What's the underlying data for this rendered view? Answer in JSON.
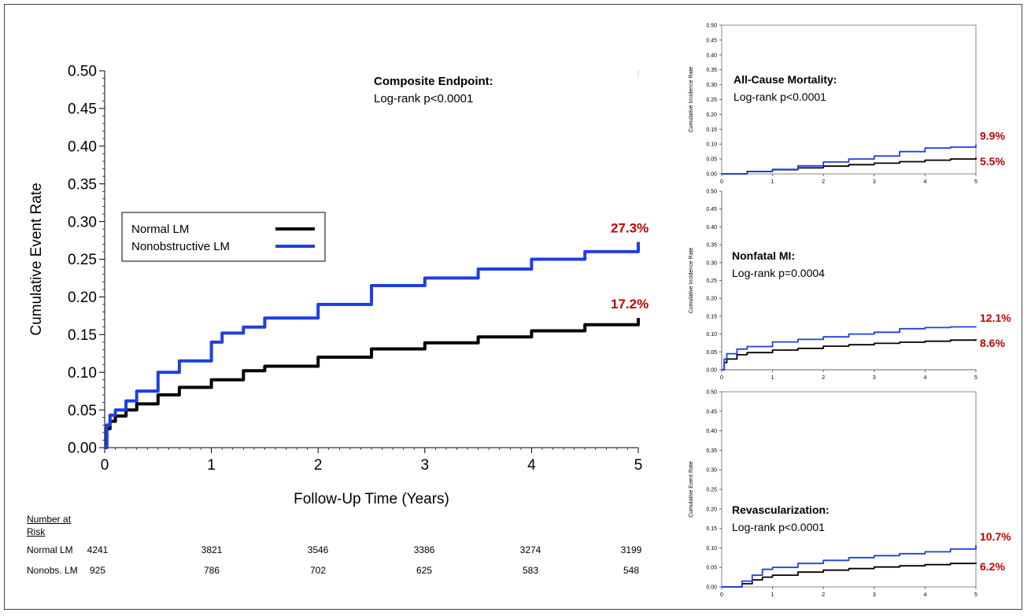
{
  "chart_data": [
    {
      "type": "line",
      "title": "Composite Endpoint:",
      "subtitle": "Log-rank p<0.0001",
      "xlabel": "Follow-Up Time (Years)",
      "ylabel": "Cumulative Event Rate",
      "xlim": [
        0,
        5
      ],
      "ylim": [
        0,
        0.5
      ],
      "x_ticks": [
        "0",
        "1",
        "2",
        "3",
        "4",
        "5"
      ],
      "y_ticks": [
        "0.00",
        "0.05",
        "0.10",
        "0.15",
        "0.20",
        "0.25",
        "0.30",
        "0.35",
        "0.40",
        "0.45",
        "0.50"
      ],
      "legend": {
        "placement": "center-left",
        "entries": [
          "Normal LM",
          "Nonobstructive LM"
        ]
      },
      "series": [
        {
          "name": "Normal LM",
          "color": "#000000",
          "end_label": "17.2%",
          "x": [
            0,
            0.02,
            0.05,
            0.1,
            0.2,
            0.3,
            0.5,
            0.7,
            1.0,
            1.3,
            1.5,
            2.0,
            2.5,
            3.0,
            3.5,
            4.0,
            4.5,
            5.0
          ],
          "y": [
            0,
            0.025,
            0.035,
            0.042,
            0.05,
            0.058,
            0.07,
            0.08,
            0.09,
            0.102,
            0.108,
            0.12,
            0.131,
            0.139,
            0.147,
            0.155,
            0.163,
            0.172
          ]
        },
        {
          "name": "Nonobstructive LM",
          "color": "#1f3fe0",
          "end_label": "27.3%",
          "x": [
            0,
            0.02,
            0.05,
            0.1,
            0.2,
            0.3,
            0.5,
            0.7,
            1.0,
            1.1,
            1.3,
            1.5,
            2.0,
            2.5,
            3.0,
            3.5,
            4.0,
            4.5,
            5.0
          ],
          "y": [
            0,
            0.03,
            0.043,
            0.05,
            0.062,
            0.075,
            0.1,
            0.115,
            0.14,
            0.152,
            0.16,
            0.172,
            0.19,
            0.215,
            0.225,
            0.237,
            0.25,
            0.26,
            0.273
          ]
        }
      ],
      "risk_table": {
        "header": [
          "Number at",
          "Risk"
        ],
        "x": [
          0,
          1,
          2,
          3,
          4,
          5
        ],
        "rows": [
          {
            "label": "Normal LM",
            "values": [
              "4241",
              "3821",
              "3546",
              "3386",
              "3274",
              "3199"
            ]
          },
          {
            "label": "Nonobs. LM",
            "values": [
              "925",
              "786",
              "702",
              "625",
              "583",
              "548"
            ]
          }
        ]
      }
    },
    {
      "type": "line",
      "title": "All-Cause Mortality:",
      "subtitle": "Log-rank p<0.0001",
      "ylabel": "Cumulative Incidence Rate",
      "xlim": [
        0,
        5
      ],
      "ylim": [
        0,
        0.5
      ],
      "x_ticks": [
        "0",
        "1",
        "2",
        "3",
        "4",
        "5"
      ],
      "y_ticks": [
        "0.00",
        "0.05",
        "0.10",
        "0.15",
        "0.20",
        "0.25",
        "0.30",
        "0.35",
        "0.40",
        "0.45",
        "0.50"
      ],
      "series": [
        {
          "name": "Normal LM",
          "color": "#000000",
          "end_label": "5.5%",
          "x": [
            0,
            0.5,
            1,
            1.5,
            2,
            2.5,
            3,
            3.5,
            4,
            4.5,
            5
          ],
          "y": [
            0,
            0.008,
            0.014,
            0.02,
            0.026,
            0.031,
            0.036,
            0.041,
            0.046,
            0.05,
            0.055
          ]
        },
        {
          "name": "Nonobstructive LM",
          "color": "#1f3fe0",
          "end_label": "9.9%",
          "x": [
            0,
            0.5,
            1,
            1.5,
            2,
            2.5,
            3,
            3.5,
            4,
            4.5,
            5
          ],
          "y": [
            0,
            0.008,
            0.015,
            0.027,
            0.04,
            0.05,
            0.06,
            0.075,
            0.087,
            0.09,
            0.099
          ]
        }
      ]
    },
    {
      "type": "line",
      "title": "Nonfatal MI:",
      "subtitle": "Log-rank p=0.0004",
      "ylabel": "Cumulative Incidence Rate",
      "xlim": [
        0,
        5
      ],
      "ylim": [
        0,
        0.5
      ],
      "x_ticks": [
        "0",
        "1",
        "2",
        "3",
        "4",
        "5"
      ],
      "y_ticks": [
        "0.00",
        "0.05",
        "0.10",
        "0.15",
        "0.20",
        "0.25",
        "0.30",
        "0.35",
        "0.40",
        "0.45",
        "0.50"
      ],
      "series": [
        {
          "name": "Normal LM",
          "color": "#000000",
          "end_label": "8.6%",
          "x": [
            0,
            0.05,
            0.1,
            0.3,
            0.5,
            1,
            1.5,
            2,
            2.5,
            3,
            3.5,
            4,
            4.5,
            5
          ],
          "y": [
            0,
            0.02,
            0.03,
            0.042,
            0.048,
            0.055,
            0.06,
            0.066,
            0.07,
            0.074,
            0.077,
            0.08,
            0.083,
            0.086
          ]
        },
        {
          "name": "Nonobstructive LM",
          "color": "#1f3fe0",
          "end_label": "12.1%",
          "x": [
            0,
            0.05,
            0.1,
            0.3,
            0.5,
            1,
            1.5,
            2,
            2.5,
            3,
            3.5,
            4,
            4.5,
            5
          ],
          "y": [
            0,
            0.03,
            0.045,
            0.058,
            0.065,
            0.078,
            0.085,
            0.092,
            0.1,
            0.105,
            0.115,
            0.118,
            0.12,
            0.121
          ]
        }
      ]
    },
    {
      "type": "line",
      "title": "Revascularization:",
      "subtitle": "Log-rank p<0.0001",
      "ylabel": "Cumulative Event Rate",
      "xlim": [
        0,
        5
      ],
      "ylim": [
        0,
        0.5
      ],
      "x_ticks": [
        "0",
        "1",
        "2",
        "3",
        "4",
        "5"
      ],
      "y_ticks": [
        "0.00",
        "0.05",
        "0.10",
        "0.15",
        "0.20",
        "0.25",
        "0.30",
        "0.35",
        "0.40",
        "0.45",
        "0.50"
      ],
      "series": [
        {
          "name": "Normal LM",
          "color": "#000000",
          "end_label": "6.2%",
          "x": [
            0,
            0.25,
            0.4,
            0.6,
            0.8,
            1,
            1.5,
            2,
            2.5,
            3,
            3.5,
            4,
            4.5,
            5
          ],
          "y": [
            0,
            0,
            0.008,
            0.018,
            0.025,
            0.03,
            0.038,
            0.043,
            0.047,
            0.051,
            0.054,
            0.057,
            0.06,
            0.062
          ]
        },
        {
          "name": "Nonobstructive LM",
          "color": "#1f3fe0",
          "end_label": "10.7%",
          "x": [
            0,
            0.25,
            0.4,
            0.6,
            0.8,
            1,
            1.5,
            2,
            2.5,
            3,
            3.5,
            4,
            4.5,
            5
          ],
          "y": [
            0,
            0,
            0.015,
            0.03,
            0.045,
            0.05,
            0.06,
            0.068,
            0.075,
            0.08,
            0.085,
            0.09,
            0.097,
            0.107
          ]
        }
      ]
    }
  ]
}
